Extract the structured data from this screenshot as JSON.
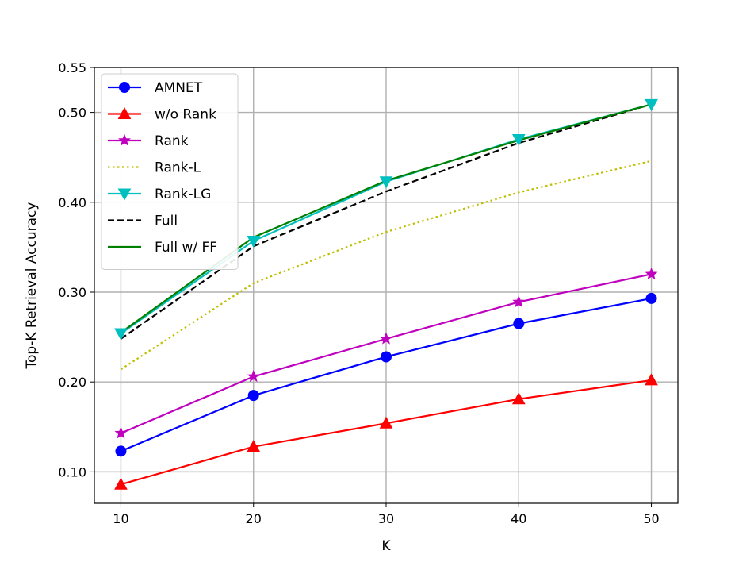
{
  "chart_data": {
    "type": "line",
    "xlabel": "K",
    "ylabel": "Top-K Retrieval Accuracy",
    "x": [
      10,
      20,
      30,
      40,
      50
    ],
    "xticks": [
      10,
      20,
      30,
      40,
      50
    ],
    "xtick_labels": [
      "10",
      "20",
      "30",
      "40",
      "50"
    ],
    "yticks": [
      0.1,
      0.2,
      0.3,
      0.4,
      0.5,
      0.55
    ],
    "ytick_labels": [
      "0.10",
      "0.20",
      "0.30",
      "0.40",
      "0.50",
      "0.55"
    ],
    "xlim": [
      8,
      52
    ],
    "ylim": [
      0.065,
      0.55
    ],
    "grid": true,
    "legend_position": "top-left",
    "series": [
      {
        "name": "AMNET",
        "values": [
          0.123,
          0.185,
          0.228,
          0.265,
          0.293
        ],
        "color": "#0000ff",
        "linestyle": "solid",
        "marker": "circle"
      },
      {
        "name": "w/o Rank",
        "values": [
          0.086,
          0.128,
          0.154,
          0.181,
          0.202
        ],
        "color": "#ff0000",
        "linestyle": "solid",
        "marker": "triangle-up"
      },
      {
        "name": "Rank",
        "values": [
          0.143,
          0.206,
          0.248,
          0.289,
          0.32
        ],
        "color": "#bf00bf",
        "linestyle": "solid",
        "marker": "star"
      },
      {
        "name": "Rank-L",
        "values": [
          0.214,
          0.31,
          0.367,
          0.411,
          0.446
        ],
        "color": "#bfbf00",
        "linestyle": "dotted",
        "marker": "none"
      },
      {
        "name": "Rank-LG",
        "values": [
          0.254,
          0.357,
          0.423,
          0.47,
          0.509
        ],
        "color": "#00bfbf",
        "linestyle": "solid",
        "marker": "triangle-down"
      },
      {
        "name": "Full",
        "values": [
          0.248,
          0.351,
          0.412,
          0.466,
          0.509
        ],
        "color": "#000000",
        "linestyle": "dashed",
        "marker": "none"
      },
      {
        "name": "Full w/ FF",
        "values": [
          0.255,
          0.361,
          0.424,
          0.469,
          0.509
        ],
        "color": "#008000",
        "linestyle": "solid",
        "marker": "none"
      }
    ]
  }
}
